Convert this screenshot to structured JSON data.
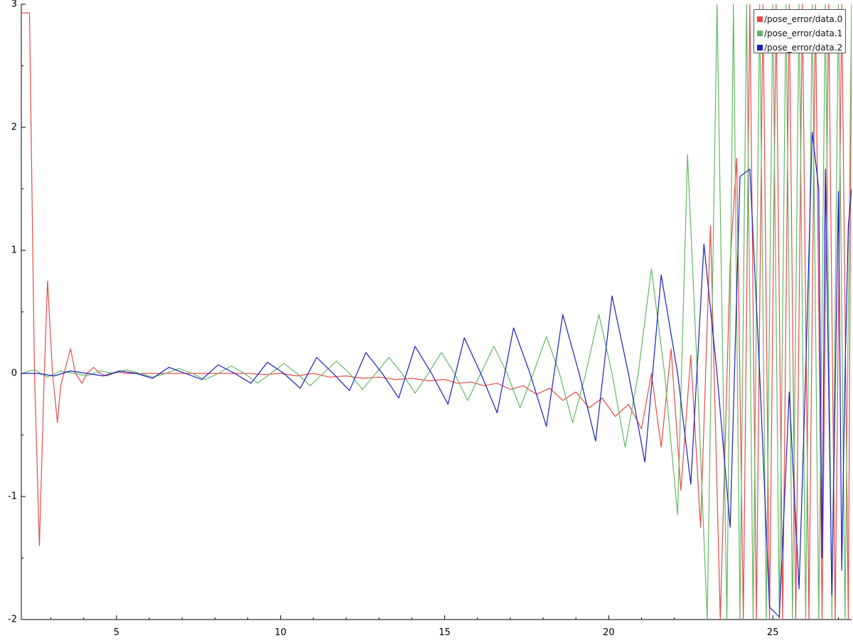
{
  "chart_data": {
    "type": "line",
    "title": "",
    "xlabel": "",
    "ylabel": "",
    "xlim": [
      2.1,
      27.4
    ],
    "ylim": [
      -2,
      3
    ],
    "x_ticks": [
      5,
      10,
      15,
      20,
      25
    ],
    "x_tick_labels": [
      "5",
      "10",
      "15",
      "20",
      "25"
    ],
    "y_ticks": [
      -2,
      -1,
      0,
      1,
      2,
      3
    ],
    "y_tick_labels": [
      "-2",
      "-1",
      "0",
      "1",
      "2",
      "3"
    ],
    "grid": false,
    "legend_position": "top-right",
    "series": [
      {
        "name": "/pose_error/data.0",
        "color": "#e84a4a",
        "x": [
          2.1,
          2.35,
          2.5,
          2.65,
          2.8,
          2.9,
          3.05,
          3.2,
          3.3,
          3.4,
          3.6,
          3.75,
          3.95,
          4.1,
          4.3,
          4.5,
          4.7,
          4.9,
          5.1,
          5.3,
          5.5,
          5.8,
          6.2,
          6.6,
          7.0,
          7.5,
          8.0,
          8.5,
          9.0,
          9.5,
          10.0,
          10.5,
          11.0,
          11.5,
          12.0,
          12.5,
          13.0,
          13.5,
          14.0,
          14.5,
          15.0,
          15.4,
          15.8,
          16.2,
          16.6,
          17.0,
          17.4,
          17.8,
          18.2,
          18.6,
          19.0,
          19.4,
          19.8,
          20.2,
          20.6,
          21.0,
          21.3,
          21.6,
          21.9,
          22.2,
          22.5,
          22.8,
          23.1,
          23.4,
          23.7,
          23.9,
          24.1,
          24.3,
          24.5,
          24.7,
          24.9,
          25.1,
          25.3,
          25.5,
          25.7,
          25.9,
          26.1,
          26.3,
          26.5,
          26.7,
          26.9,
          27.1,
          27.3,
          27.4
        ],
        "values": [
          2.93,
          2.93,
          0.0,
          -1.4,
          0.0,
          0.75,
          0.0,
          -0.4,
          -0.1,
          0.0,
          0.2,
          0.0,
          -0.08,
          0.0,
          0.05,
          0.0,
          -0.02,
          0.0,
          0.01,
          0.0,
          0.0,
          0.0,
          0.0,
          0.0,
          0.0,
          0.0,
          0.0,
          0.0,
          0.0,
          -0.01,
          0.0,
          -0.02,
          0.0,
          -0.03,
          -0.02,
          -0.04,
          -0.03,
          -0.05,
          -0.04,
          -0.06,
          -0.05,
          -0.08,
          -0.07,
          -0.1,
          -0.08,
          -0.13,
          -0.1,
          -0.17,
          -0.12,
          -0.22,
          -0.15,
          -0.28,
          -0.2,
          -0.35,
          -0.25,
          -0.45,
          0.0,
          -0.6,
          0.2,
          -0.95,
          0.15,
          -1.25,
          1.2,
          -2.0,
          0.9,
          1.75,
          -2.0,
          3.0,
          -2.0,
          3.0,
          -2.0,
          3.0,
          -2.0,
          3.0,
          -2.0,
          3.0,
          -2.0,
          3.0,
          -2.0,
          3.0,
          -2.0,
          3.0,
          -2.0,
          3.0
        ]
      },
      {
        "name": "/pose_error/data.1",
        "color": "#63b863",
        "x": [
          2.1,
          2.5,
          2.9,
          3.3,
          3.7,
          4.1,
          4.5,
          4.9,
          5.3,
          5.7,
          6.1,
          6.5,
          6.9,
          7.3,
          7.7,
          8.1,
          8.5,
          8.9,
          9.3,
          9.7,
          10.1,
          10.5,
          10.9,
          11.3,
          11.7,
          12.1,
          12.5,
          12.9,
          13.3,
          13.7,
          14.1,
          14.5,
          14.9,
          15.3,
          15.7,
          16.1,
          16.5,
          16.9,
          17.3,
          17.7,
          18.1,
          18.5,
          18.9,
          19.3,
          19.7,
          20.1,
          20.5,
          20.9,
          21.3,
          21.7,
          22.1,
          22.4,
          22.7,
          23.0,
          23.3,
          23.6,
          23.8,
          24.0,
          24.2,
          24.4,
          24.6,
          24.8,
          25.0,
          25.2,
          25.4,
          25.6,
          25.8,
          26.0,
          26.2,
          26.4,
          26.6,
          26.8,
          27.0,
          27.2,
          27.4
        ],
        "values": [
          0.0,
          0.03,
          -0.03,
          0.02,
          0.0,
          -0.02,
          0.02,
          0.0,
          0.03,
          0.0,
          -0.03,
          0.0,
          0.04,
          0.0,
          -0.05,
          0.0,
          0.06,
          0.0,
          -0.08,
          0.0,
          0.08,
          0.0,
          -0.1,
          0.0,
          0.1,
          0.0,
          -0.13,
          0.0,
          0.13,
          0.0,
          -0.16,
          0.0,
          0.17,
          0.0,
          -0.22,
          0.0,
          0.22,
          0.0,
          -0.28,
          0.0,
          0.3,
          0.0,
          -0.4,
          0.0,
          0.48,
          0.0,
          -0.6,
          0.0,
          0.85,
          0.0,
          -1.15,
          1.78,
          0.0,
          -2.0,
          3.0,
          -2.0,
          3.0,
          -2.0,
          3.0,
          -2.0,
          3.0,
          -2.0,
          3.0,
          -2.0,
          3.0,
          -2.0,
          3.0,
          -2.0,
          3.0,
          -2.0,
          3.0,
          -2.0,
          3.0,
          -2.0,
          3.0
        ]
      },
      {
        "name": "/pose_error/data.2",
        "color": "#1c1cc4",
        "x": [
          2.1,
          2.6,
          3.1,
          3.6,
          4.1,
          4.6,
          5.1,
          5.6,
          6.1,
          6.6,
          7.1,
          7.6,
          8.1,
          8.6,
          9.1,
          9.6,
          10.1,
          10.6,
          11.1,
          11.6,
          12.1,
          12.6,
          13.1,
          13.6,
          14.1,
          14.6,
          15.1,
          15.6,
          16.1,
          16.6,
          17.1,
          17.6,
          18.1,
          18.6,
          19.1,
          19.6,
          20.1,
          20.6,
          21.1,
          21.6,
          22.1,
          22.5,
          22.9,
          23.3,
          23.7,
          24.0,
          24.3,
          24.6,
          24.9,
          25.2,
          25.5,
          25.8,
          26.0,
          26.2,
          26.4,
          26.5,
          26.6,
          26.8,
          27.0,
          27.1,
          27.2,
          27.3,
          27.4
        ],
        "values": [
          0.0,
          0.0,
          -0.02,
          0.02,
          0.0,
          -0.02,
          0.02,
          0.0,
          -0.04,
          0.05,
          0.0,
          -0.05,
          0.07,
          0.0,
          -0.08,
          0.09,
          0.0,
          -0.12,
          0.13,
          0.0,
          -0.14,
          0.17,
          0.0,
          -0.2,
          0.22,
          0.0,
          -0.25,
          0.29,
          0.0,
          -0.32,
          0.37,
          0.0,
          -0.43,
          0.48,
          0.0,
          -0.55,
          0.63,
          0.0,
          -0.72,
          0.8,
          0.0,
          -0.9,
          1.05,
          0.0,
          -1.25,
          1.6,
          1.66,
          0.0,
          -1.9,
          -1.98,
          -0.15,
          -1.75,
          0.0,
          1.96,
          1.5,
          -1.5,
          1.66,
          -1.8,
          1.48,
          -1.6,
          0.0,
          1.2,
          1.5
        ]
      }
    ]
  }
}
